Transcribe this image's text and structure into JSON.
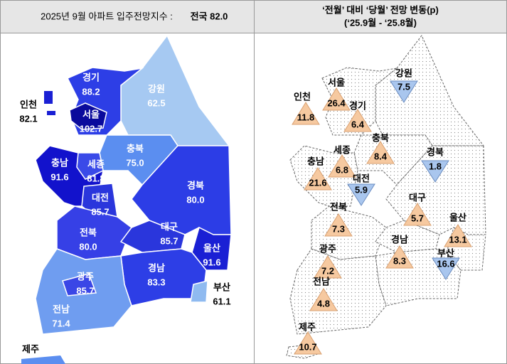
{
  "header": {
    "left": {
      "label": "2025년 9월 아파트 입주전망지수 :",
      "national": "전국 82.0"
    },
    "right": {
      "line1": "‘전월’ 대비 ‘당월’ 전망 변동(p)",
      "line2": "(‘25.9월  -  ‘25.8월)"
    }
  },
  "index_map": {
    "regions": [
      {
        "name": "경기",
        "value": "88.2"
      },
      {
        "name": "인천",
        "value": "82.1"
      },
      {
        "name": "서울",
        "value": "102.7"
      },
      {
        "name": "강원",
        "value": "62.5"
      },
      {
        "name": "충북",
        "value": "75.0"
      },
      {
        "name": "충남",
        "value": "91.6"
      },
      {
        "name": "세종",
        "value": "81.8"
      },
      {
        "name": "대전",
        "value": "85.7"
      },
      {
        "name": "경북",
        "value": "80.0"
      },
      {
        "name": "전북",
        "value": "80.0"
      },
      {
        "name": "대구",
        "value": "85.7"
      },
      {
        "name": "울산",
        "value": "91.6"
      },
      {
        "name": "경남",
        "value": "83.3"
      },
      {
        "name": "광주",
        "value": "85.7"
      },
      {
        "name": "부산",
        "value": "61.1"
      },
      {
        "name": "전남",
        "value": "71.4"
      },
      {
        "name": "제주"
      }
    ]
  },
  "change_map": {
    "regions": [
      {
        "name": "서울",
        "value": "26.4",
        "direction": "up"
      },
      {
        "name": "인천",
        "value": "11.8",
        "direction": "up"
      },
      {
        "name": "강원",
        "value": "7.5",
        "direction": "down"
      },
      {
        "name": "경기",
        "value": "6.4",
        "direction": "up"
      },
      {
        "name": "충북",
        "value": "8.4",
        "direction": "up"
      },
      {
        "name": "경북",
        "value": "1.8",
        "direction": "down"
      },
      {
        "name": "세종",
        "value": "6.8",
        "direction": "up"
      },
      {
        "name": "충남",
        "value": "21.6",
        "direction": "up"
      },
      {
        "name": "대전",
        "value": "5.9",
        "direction": "down"
      },
      {
        "name": "대구",
        "value": "5.7",
        "direction": "up"
      },
      {
        "name": "울산",
        "value": "13.1",
        "direction": "up"
      },
      {
        "name": "전북",
        "value": "7.3",
        "direction": "up"
      },
      {
        "name": "광주",
        "value": "7.2",
        "direction": "up"
      },
      {
        "name": "경남",
        "value": "8.3",
        "direction": "up"
      },
      {
        "name": "부산",
        "value": "16.6",
        "direction": "down"
      },
      {
        "name": "전남",
        "value": "4.8",
        "direction": "up"
      },
      {
        "name": "제주",
        "value": "10.7",
        "direction": "up"
      }
    ]
  }
}
